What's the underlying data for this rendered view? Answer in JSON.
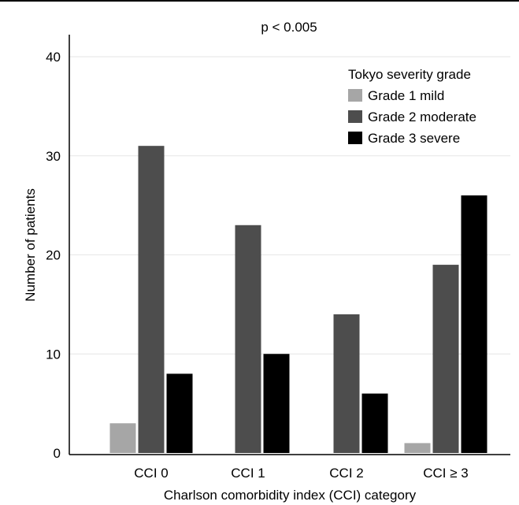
{
  "chart_data": {
    "type": "bar",
    "annotation": "p < 0.005",
    "xlabel": "Charlson comorbidity index (CCI) category",
    "ylabel": "Number of patients",
    "categories": [
      "CCI 0",
      "CCI 1",
      "CCI 2",
      "CCI ≥ 3"
    ],
    "ylim": [
      0,
      40
    ],
    "yticks": [
      "0",
      "10",
      "20",
      "30",
      "40"
    ],
    "grid": true,
    "legend": {
      "title": "Tokyo severity grade",
      "placement": "top-right"
    },
    "series": [
      {
        "name": "Grade 1 mild",
        "color": "#a6a6a6",
        "values": [
          3,
          0,
          0,
          1
        ]
      },
      {
        "name": "Grade 2 moderate",
        "color": "#4d4d4d",
        "values": [
          31,
          23,
          14,
          19
        ]
      },
      {
        "name": "Grade 3 severe",
        "color": "#000000",
        "values": [
          8,
          10,
          6,
          26
        ]
      }
    ]
  }
}
